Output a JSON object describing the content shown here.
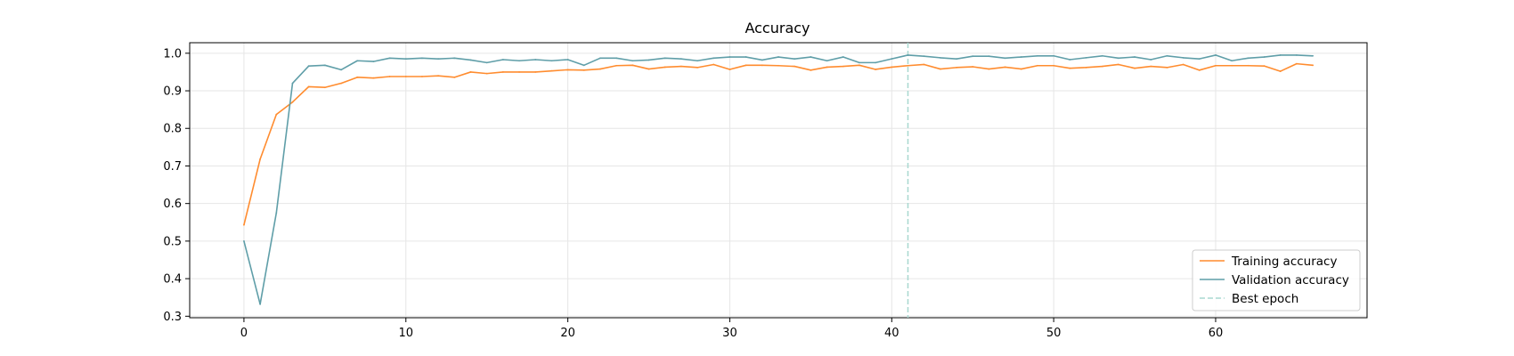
{
  "chart_data": {
    "type": "line",
    "title": "Accuracy",
    "xlabel": "",
    "ylabel": "",
    "xlim": [
      -3.35,
      69.35
    ],
    "ylim": [
      0.296,
      1.028
    ],
    "xticks": [
      0,
      10,
      20,
      30,
      40,
      50,
      60
    ],
    "yticks": [
      0.3,
      0.4,
      0.5,
      0.6,
      0.7,
      0.8,
      0.9,
      1.0
    ],
    "xtick_labels": [
      "0",
      "10",
      "20",
      "30",
      "40",
      "50",
      "60"
    ],
    "ytick_labels": [
      "0.3",
      "0.4",
      "0.5",
      "0.6",
      "0.7",
      "0.8",
      "0.9",
      "1.0"
    ],
    "grid": true,
    "legend_position": "lower-right",
    "series": [
      {
        "name": "Training accuracy",
        "color": "#ff8c2f",
        "x": [
          0,
          1,
          2,
          3,
          4,
          5,
          6,
          7,
          8,
          9,
          10,
          11,
          12,
          13,
          14,
          15,
          16,
          17,
          18,
          19,
          20,
          21,
          22,
          23,
          24,
          25,
          26,
          27,
          28,
          29,
          30,
          31,
          32,
          33,
          34,
          35,
          36,
          37,
          38,
          39,
          40,
          41,
          42,
          43,
          44,
          45,
          46,
          47,
          48,
          49,
          50,
          51,
          52,
          53,
          54,
          55,
          56,
          57,
          58,
          59,
          60,
          61,
          62,
          63,
          64,
          65,
          66
        ],
        "values": [
          0.543,
          0.718,
          0.837,
          0.87,
          0.911,
          0.909,
          0.92,
          0.936,
          0.934,
          0.938,
          0.938,
          0.938,
          0.94,
          0.936,
          0.95,
          0.946,
          0.95,
          0.95,
          0.95,
          0.953,
          0.956,
          0.955,
          0.958,
          0.967,
          0.968,
          0.958,
          0.963,
          0.965,
          0.962,
          0.97,
          0.957,
          0.968,
          0.968,
          0.967,
          0.965,
          0.955,
          0.963,
          0.965,
          0.968,
          0.957,
          0.963,
          0.967,
          0.97,
          0.958,
          0.962,
          0.964,
          0.958,
          0.963,
          0.958,
          0.967,
          0.967,
          0.96,
          0.962,
          0.965,
          0.97,
          0.96,
          0.965,
          0.962,
          0.97,
          0.955,
          0.967,
          0.967,
          0.967,
          0.966,
          0.952,
          0.972,
          0.968
        ]
      },
      {
        "name": "Validation accuracy",
        "color": "#5f9ea8",
        "x": [
          0,
          1,
          2,
          3,
          4,
          5,
          6,
          7,
          8,
          9,
          10,
          11,
          12,
          13,
          14,
          15,
          16,
          17,
          18,
          19,
          20,
          21,
          22,
          23,
          24,
          25,
          26,
          27,
          28,
          29,
          30,
          31,
          32,
          33,
          34,
          35,
          36,
          37,
          38,
          39,
          40,
          41,
          42,
          43,
          44,
          45,
          46,
          47,
          48,
          49,
          50,
          51,
          52,
          53,
          54,
          55,
          56,
          57,
          58,
          59,
          60,
          61,
          62,
          63,
          64,
          65,
          66
        ],
        "values": [
          0.5,
          0.332,
          0.575,
          0.92,
          0.966,
          0.968,
          0.956,
          0.98,
          0.978,
          0.987,
          0.985,
          0.987,
          0.985,
          0.987,
          0.982,
          0.975,
          0.983,
          0.98,
          0.983,
          0.98,
          0.983,
          0.968,
          0.987,
          0.987,
          0.98,
          0.982,
          0.987,
          0.985,
          0.98,
          0.987,
          0.99,
          0.99,
          0.982,
          0.99,
          0.985,
          0.99,
          0.98,
          0.99,
          0.975,
          0.975,
          0.985,
          0.995,
          0.992,
          0.988,
          0.985,
          0.992,
          0.992,
          0.987,
          0.99,
          0.993,
          0.993,
          0.983,
          0.988,
          0.993,
          0.987,
          0.99,
          0.983,
          0.993,
          0.988,
          0.985,
          0.995,
          0.98,
          0.987,
          0.99,
          0.995,
          0.995,
          0.993
        ]
      }
    ],
    "best_epoch": {
      "name": "Best epoch",
      "x": 41,
      "color": "#a8d8d0"
    }
  }
}
